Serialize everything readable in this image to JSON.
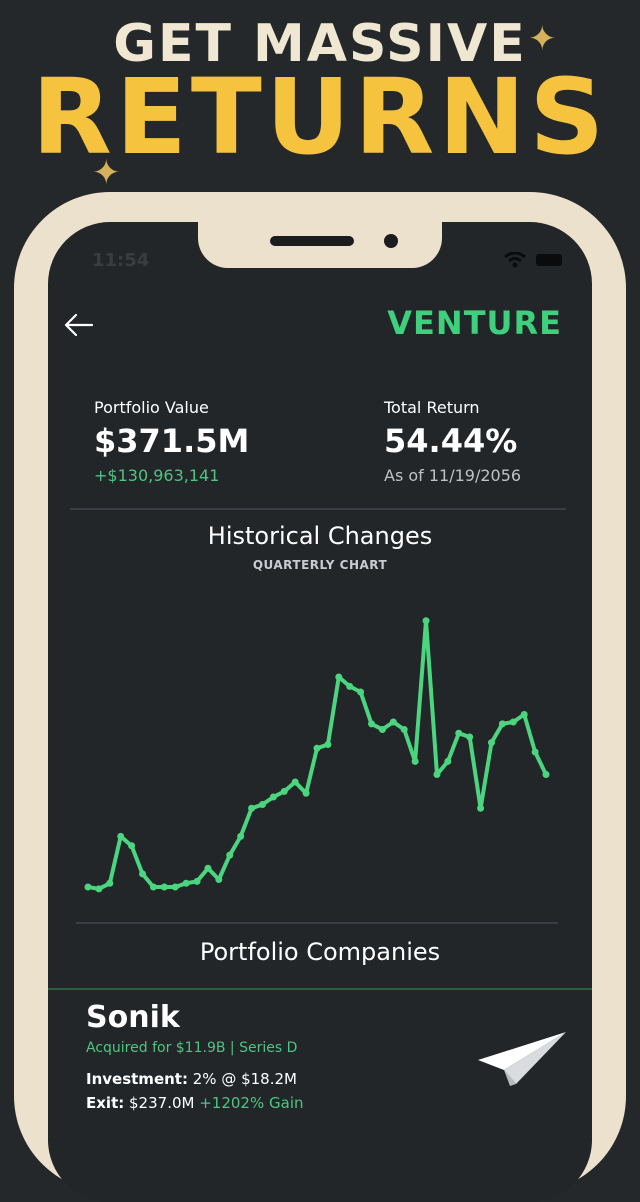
{
  "promo": {
    "line1": "GET MASSIVE",
    "line2": "RETURNS"
  },
  "status": {
    "time": "11:54"
  },
  "header": {
    "brand": "VENTURE"
  },
  "portfolio": {
    "value_label": "Portfolio Value",
    "value": "$371.5M",
    "value_change": "+$130,963,141",
    "return_label": "Total Return",
    "return_value": "54.44%",
    "as_of": "As of 11/19/2056"
  },
  "chart": {
    "title": "Historical Changes",
    "subtitle": "QUARTERLY CHART"
  },
  "chart_data": {
    "type": "line",
    "title": "Historical Changes",
    "subtitle": "QUARTERLY CHART",
    "series": [
      {
        "values": [
          8,
          7,
          10,
          35,
          30,
          15,
          8,
          8,
          8,
          10,
          11,
          18,
          12,
          25,
          35,
          50,
          52,
          56,
          59,
          64,
          58,
          82,
          84,
          120,
          115,
          112,
          95,
          92,
          96,
          92,
          75,
          150,
          68,
          75,
          90,
          88,
          50,
          85,
          95,
          96,
          100,
          80,
          68
        ]
      }
    ],
    "color": "#4cd57f",
    "grid": false
  },
  "companies": {
    "title": "Portfolio Companies",
    "items": [
      {
        "name": "Sonik",
        "acquired": "Acquired for $11.9B | Series D",
        "investment_label": "Investment:",
        "investment_value": "2% @ $18.2M",
        "exit_label": "Exit:",
        "exit_value": "$237.0M",
        "exit_gain": "+1202% Gain",
        "icon": "paper-plane-icon"
      }
    ]
  },
  "colors": {
    "background": "#25282b",
    "screen": "#222629",
    "accent": "#3ed07d",
    "promo_gold": "#f6c33e",
    "phone_frame": "#ece1cc"
  }
}
